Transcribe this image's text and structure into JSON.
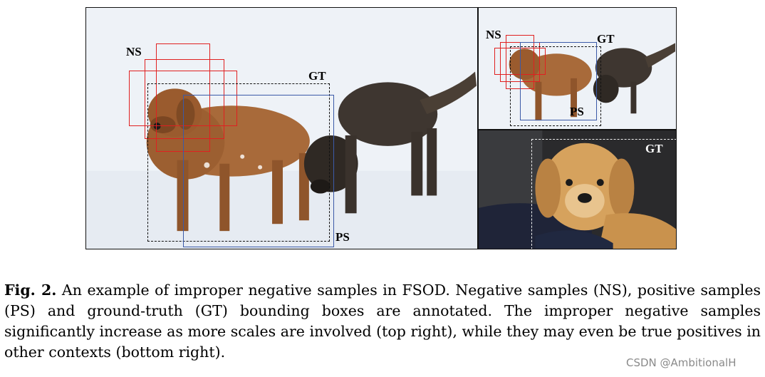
{
  "figure": {
    "main_panel": {
      "ns_label": "NS",
      "gt_label": "GT",
      "ps_label": "PS"
    },
    "top_right_panel": {
      "ns_label": "NS",
      "gt_label": "GT",
      "ps_label": "PS"
    },
    "bottom_right_panel": {
      "gt_label": "GT"
    },
    "colors": {
      "negative_box": "#e02020",
      "positive_box": "#3b5aa8",
      "ground_truth_box": "#111111"
    }
  },
  "caption": {
    "label": "Fig. 2.",
    "text": "An example of improper negative samples in FSOD. Negative samples (NS), positive samples (PS) and ground-truth (GT) bounding boxes are annotated. The improper negative samples significantly increase as more scales are involved (top right), while they may even be true positives in other contexts (bottom right)."
  },
  "watermark": "CSDN @AmbitionalH"
}
